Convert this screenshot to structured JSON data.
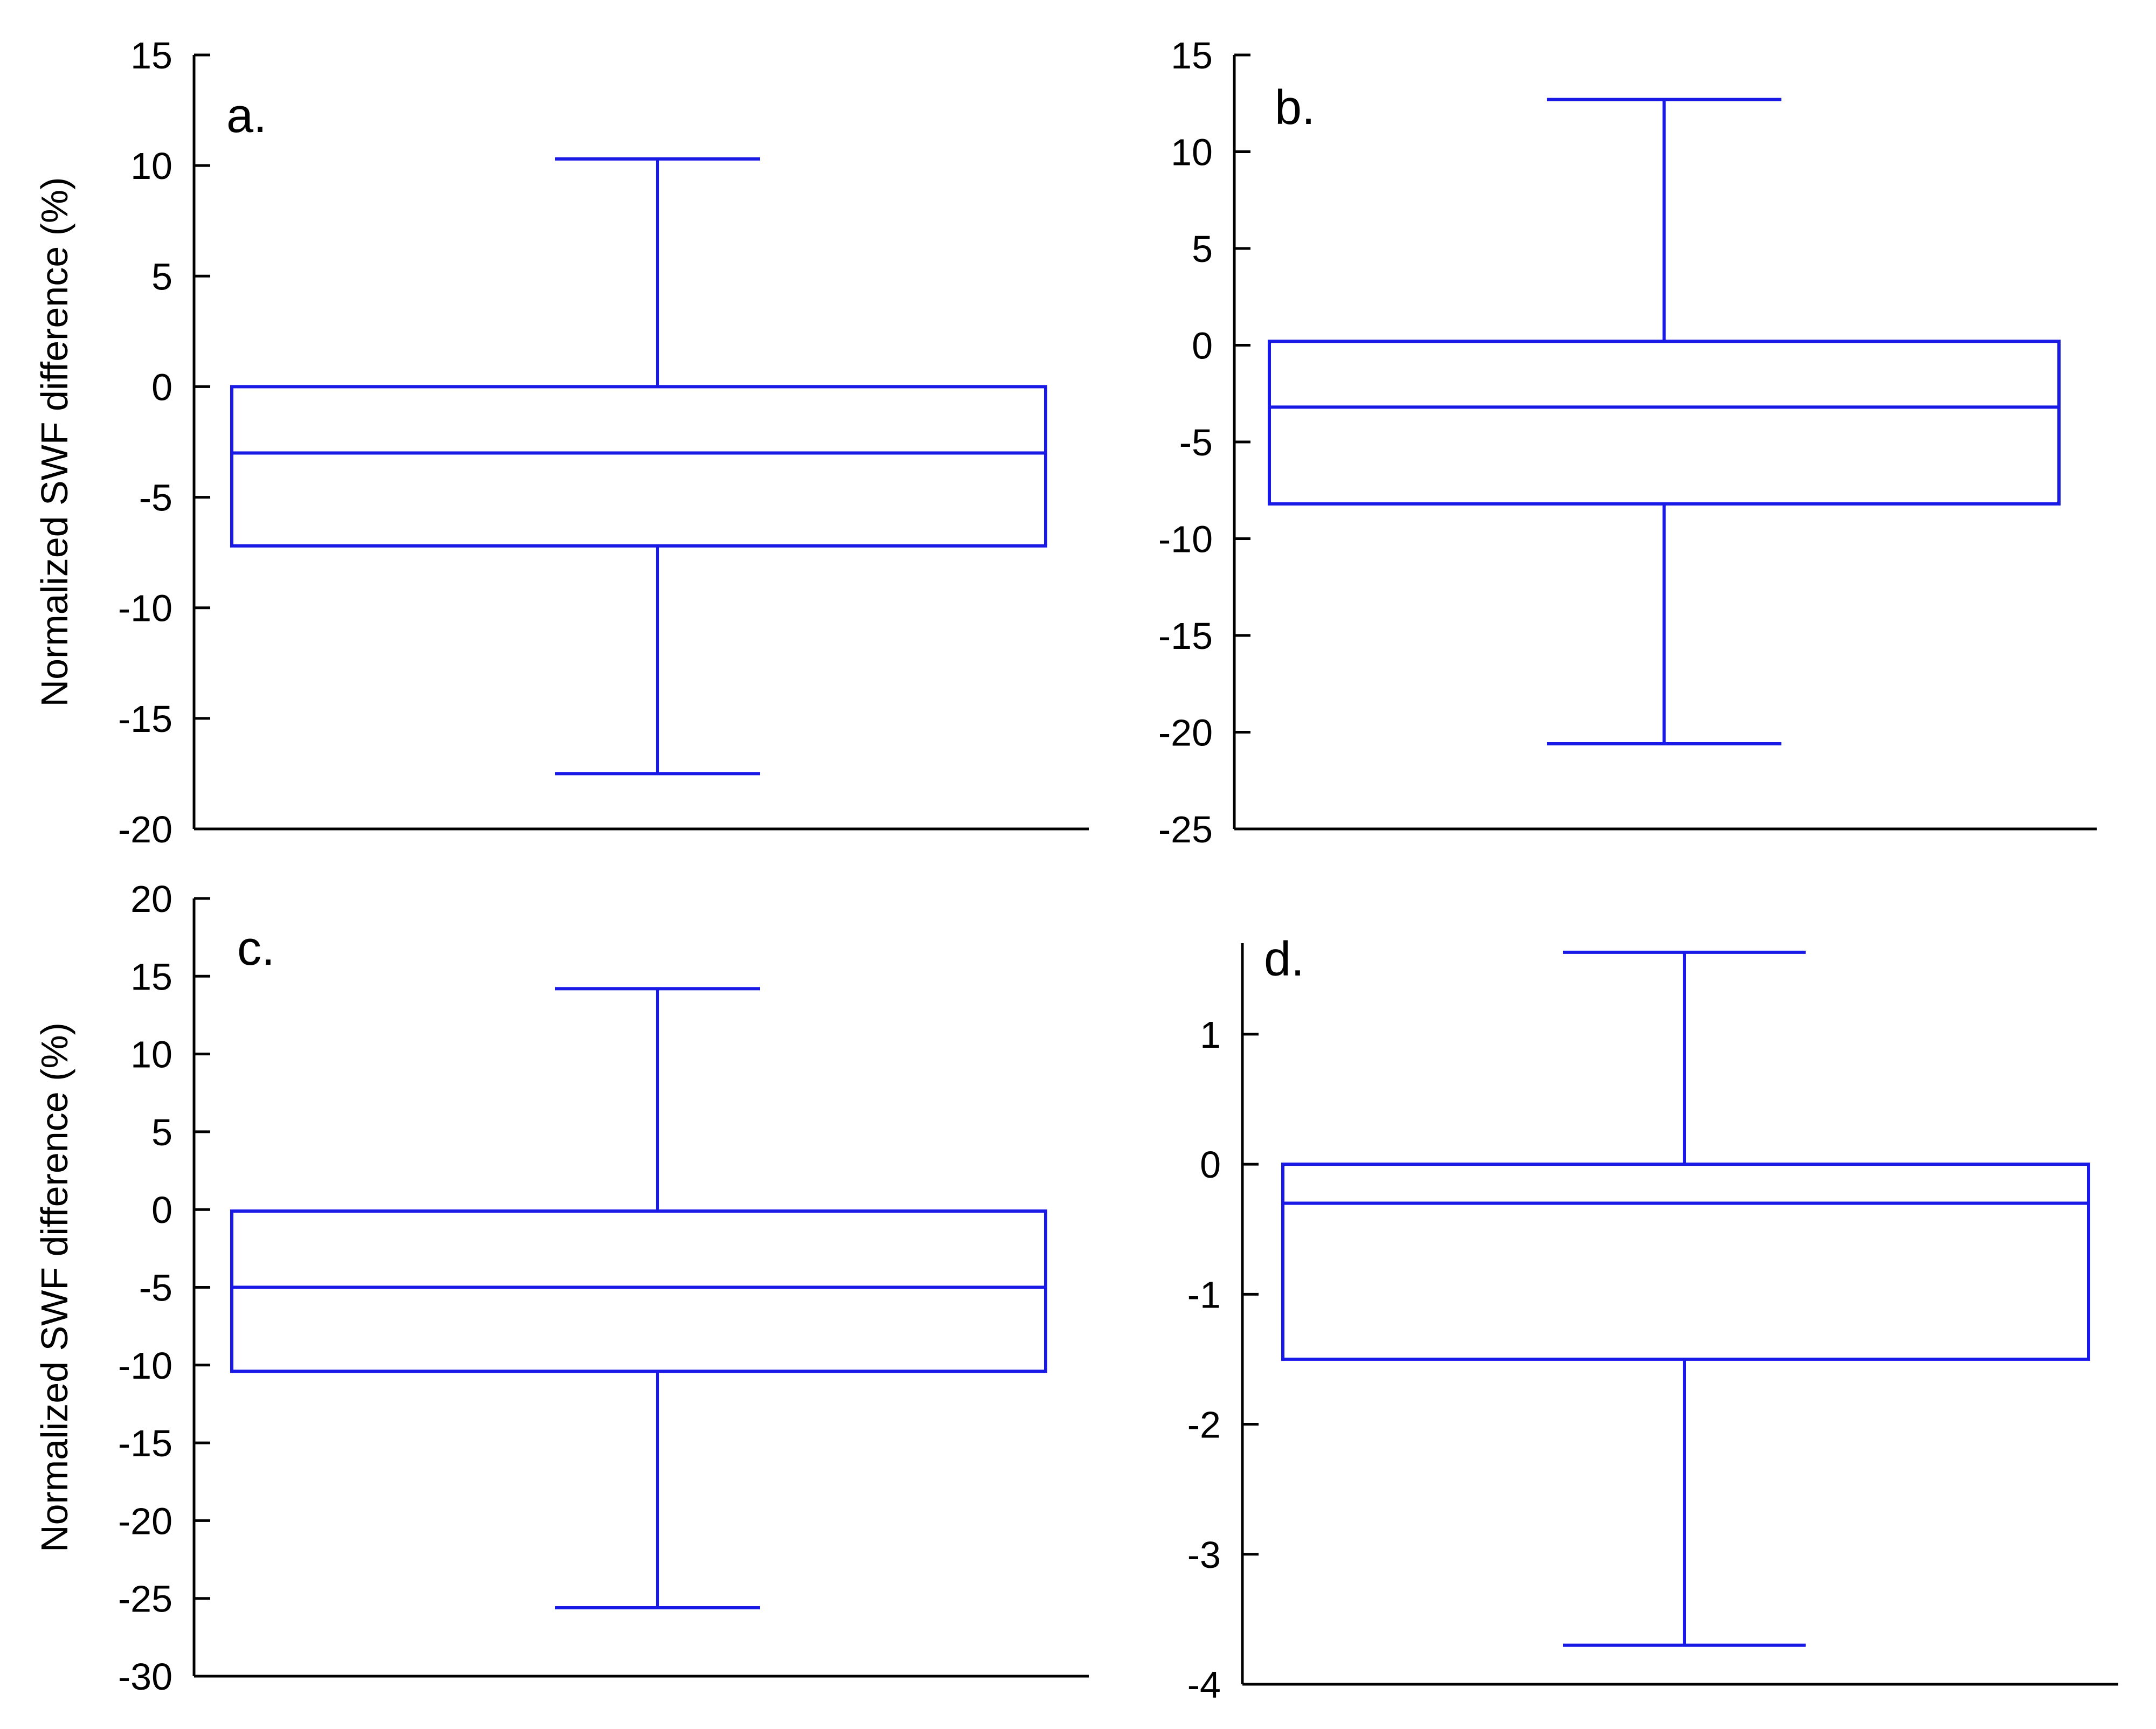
{
  "chart_data": [
    {
      "type": "box",
      "panel_label": "a.",
      "ylabel": "Normalized SWF difference (%)",
      "ylim": [
        -20,
        15
      ],
      "yticks": [
        "-20",
        "-15",
        "-10",
        "-5",
        "0",
        "5",
        "10",
        "15"
      ],
      "box": {
        "whisker_low": -17.5,
        "q1": -7.2,
        "median": -3.0,
        "q3": 0.0,
        "whisker_high": 10.3
      },
      "color": "#1a1ae6",
      "grid": false
    },
    {
      "type": "box",
      "panel_label": "b.",
      "ylabel": "",
      "ylim": [
        -25,
        15
      ],
      "yticks": [
        "-25",
        "-20",
        "-15",
        "-10",
        "-5",
        "0",
        "5",
        "10",
        "15"
      ],
      "box": {
        "whisker_low": -20.6,
        "q1": -8.2,
        "median": -3.2,
        "q3": 0.2,
        "whisker_high": 12.7
      },
      "color": "#1a1ae6",
      "grid": false
    },
    {
      "type": "box",
      "panel_label": "c.",
      "ylabel": "Normalized SWF difference (%)",
      "ylim": [
        -30,
        20
      ],
      "yticks": [
        "-30",
        "-25",
        "-20",
        "-15",
        "-10",
        "-5",
        "0",
        "5",
        "10",
        "15",
        "20"
      ],
      "box": {
        "whisker_low": -25.6,
        "q1": -10.4,
        "median": -5.0,
        "q3": -0.1,
        "whisker_high": 14.2
      },
      "color": "#1a1ae6",
      "grid": false
    },
    {
      "type": "box",
      "panel_label": "d.",
      "ylabel": "",
      "ylim": [
        -4,
        1.7
      ],
      "yticks": [
        "-4",
        "-3",
        "-2",
        "-1",
        "0",
        "1"
      ],
      "box": {
        "whisker_low": -3.7,
        "q1": -1.5,
        "median": -0.3,
        "q3": 0.0,
        "whisker_high": 1.63
      },
      "color": "#1a1ae6",
      "grid": false
    }
  ]
}
